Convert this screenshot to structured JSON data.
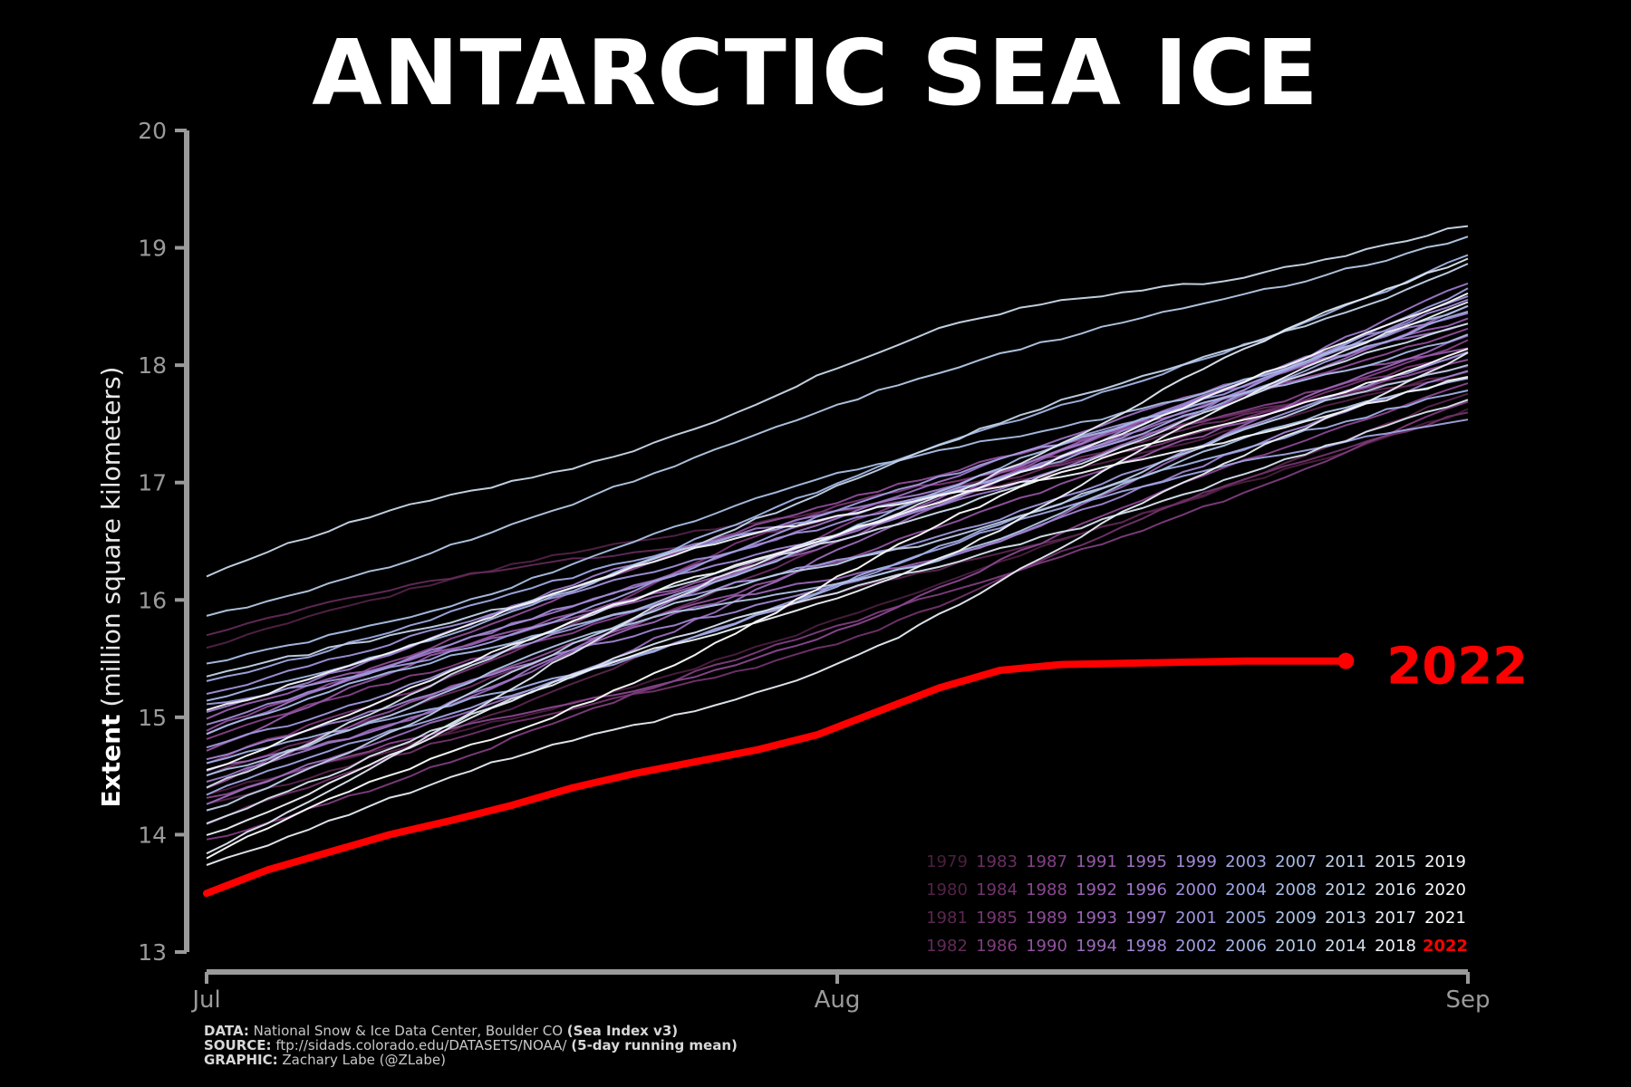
{
  "chart_data": {
    "type": "line",
    "title": "ANTARCTIC SEA ICE",
    "ylabel_bold": "Extent",
    "ylabel_rest": "(million square kilometers)",
    "xlabel": "",
    "xlim": [
      1,
      63
    ],
    "ylim": [
      13,
      20
    ],
    "yticks": [
      13,
      14,
      15,
      16,
      17,
      18,
      19,
      20
    ],
    "xticks": [
      {
        "x": 1,
        "label": "Jul"
      },
      {
        "x": 32,
        "label": "Aug"
      },
      {
        "x": 63,
        "label": "Sep"
      }
    ],
    "grid": false,
    "legend_position": "bottom-right",
    "series_2022": {
      "name": "2022",
      "color": "#ff0000",
      "x": [
        1,
        4,
        7,
        10,
        13,
        16,
        19,
        22,
        25,
        28,
        31,
        34,
        37,
        40,
        43,
        46,
        49,
        52,
        55,
        57
      ],
      "y": [
        13.5,
        13.7,
        13.85,
        14.0,
        14.12,
        14.25,
        14.4,
        14.52,
        14.62,
        14.72,
        14.85,
        15.05,
        15.25,
        15.4,
        15.45,
        15.46,
        15.47,
        15.48,
        15.48,
        15.48
      ]
    },
    "years": [
      {
        "year": "1979",
        "color": "#4a1f3e",
        "start": 14.35,
        "end": 17.62
      },
      {
        "year": "1980",
        "color": "#522246",
        "start": 15.6,
        "end": 17.95
      },
      {
        "year": "1981",
        "color": "#5a264f",
        "start": 14.25,
        "end": 17.75
      },
      {
        "year": "1982",
        "color": "#622a58",
        "start": 15.7,
        "end": 17.9
      },
      {
        "year": "1983",
        "color": "#6a2e62",
        "start": 14.5,
        "end": 18.0
      },
      {
        "year": "1984",
        "color": "#72336c",
        "start": 14.1,
        "end": 17.6
      },
      {
        "year": "1985",
        "color": "#793775",
        "start": 14.6,
        "end": 18.1
      },
      {
        "year": "1986",
        "color": "#803c7e",
        "start": 13.95,
        "end": 17.7
      },
      {
        "year": "1987",
        "color": "#854187",
        "start": 14.8,
        "end": 18.2
      },
      {
        "year": "1988",
        "color": "#8a478f",
        "start": 14.3,
        "end": 17.85
      },
      {
        "year": "1989",
        "color": "#8e4d97",
        "start": 14.9,
        "end": 18.3
      },
      {
        "year": "1990",
        "color": "#91539f",
        "start": 14.4,
        "end": 18.05
      },
      {
        "year": "1991",
        "color": "#9459a7",
        "start": 14.7,
        "end": 18.15
      },
      {
        "year": "1992",
        "color": "#975fae",
        "start": 15.0,
        "end": 18.4
      },
      {
        "year": "1993",
        "color": "#9965b5",
        "start": 14.55,
        "end": 18.25
      },
      {
        "year": "1994",
        "color": "#9b6bbb",
        "start": 14.25,
        "end": 18.5
      },
      {
        "year": "1995",
        "color": "#9d72c2",
        "start": 14.85,
        "end": 18.35
      },
      {
        "year": "1996",
        "color": "#9e78c8",
        "start": 14.45,
        "end": 18.7
      },
      {
        "year": "1997",
        "color": "#9f7ecd",
        "start": 15.05,
        "end": 18.45
      },
      {
        "year": "1998",
        "color": "#a085d2",
        "start": 14.65,
        "end": 17.95
      },
      {
        "year": "1999",
        "color": "#a08bd6",
        "start": 14.95,
        "end": 18.55
      },
      {
        "year": "2000",
        "color": "#a092da",
        "start": 15.2,
        "end": 18.6
      },
      {
        "year": "2001",
        "color": "#a098dd",
        "start": 14.75,
        "end": 18.1
      },
      {
        "year": "2002",
        "color": "#a09ee0",
        "start": 15.1,
        "end": 18.65
      },
      {
        "year": "2003",
        "color": "#a0a4e2",
        "start": 14.35,
        "end": 17.55
      },
      {
        "year": "2004",
        "color": "#a0aae4",
        "start": 15.3,
        "end": 18.45
      },
      {
        "year": "2005",
        "color": "#a1b0e5",
        "start": 14.6,
        "end": 17.8
      },
      {
        "year": "2006",
        "color": "#a3b6e6",
        "start": 15.15,
        "end": 18.95
      },
      {
        "year": "2007",
        "color": "#a6bbe6",
        "start": 14.85,
        "end": 18.25
      },
      {
        "year": "2008",
        "color": "#aac0e6",
        "start": 15.45,
        "end": 18.5
      },
      {
        "year": "2009",
        "color": "#afc5e6",
        "start": 14.5,
        "end": 17.9
      },
      {
        "year": "2010",
        "color": "#b5cae6",
        "start": 15.85,
        "end": 19.1
      },
      {
        "year": "2011",
        "color": "#bccfe7",
        "start": 14.2,
        "end": 18.0
      },
      {
        "year": "2012",
        "color": "#c3d4e8",
        "start": 15.35,
        "end": 18.85
      },
      {
        "year": "2013",
        "color": "#cad9ea",
        "start": 16.2,
        "end": 19.2
      },
      {
        "year": "2014",
        "color": "#d1deec",
        "start": 14.4,
        "end": 18.35
      },
      {
        "year": "2015",
        "color": "#d8e3ee",
        "start": 14.1,
        "end": 17.7
      },
      {
        "year": "2016",
        "color": "#dfe8f1",
        "start": 13.85,
        "end": 18.9
      },
      {
        "year": "2017",
        "color": "#e6edf4",
        "start": 13.75,
        "end": 18.1
      },
      {
        "year": "2018",
        "color": "#edf2f7",
        "start": 14.0,
        "end": 18.55
      },
      {
        "year": "2019",
        "color": "#f3f6fa",
        "start": 15.05,
        "end": 17.9
      },
      {
        "year": "2020",
        "color": "#f8fafc",
        "start": 14.55,
        "end": 18.6
      },
      {
        "year": "2021",
        "color": "#ffffff",
        "start": 13.8,
        "end": 18.15
      },
      {
        "year": "2022",
        "color": "#ff0000",
        "start": 13.5,
        "end": 15.48
      }
    ],
    "end_label": "2022"
  },
  "footer": {
    "data_label": "DATA:",
    "data_text": "National Snow & Ice Data Center, Boulder CO",
    "data_bold": "(Sea Index v3)",
    "source_label": "SOURCE:",
    "source_text": "ftp://sidads.colorado.edu/DATASETS/NOAA/",
    "source_bold": "(5-day running mean)",
    "graphic_label": "GRAPHIC:",
    "graphic_text": "Zachary Labe (@ZLabe)"
  }
}
